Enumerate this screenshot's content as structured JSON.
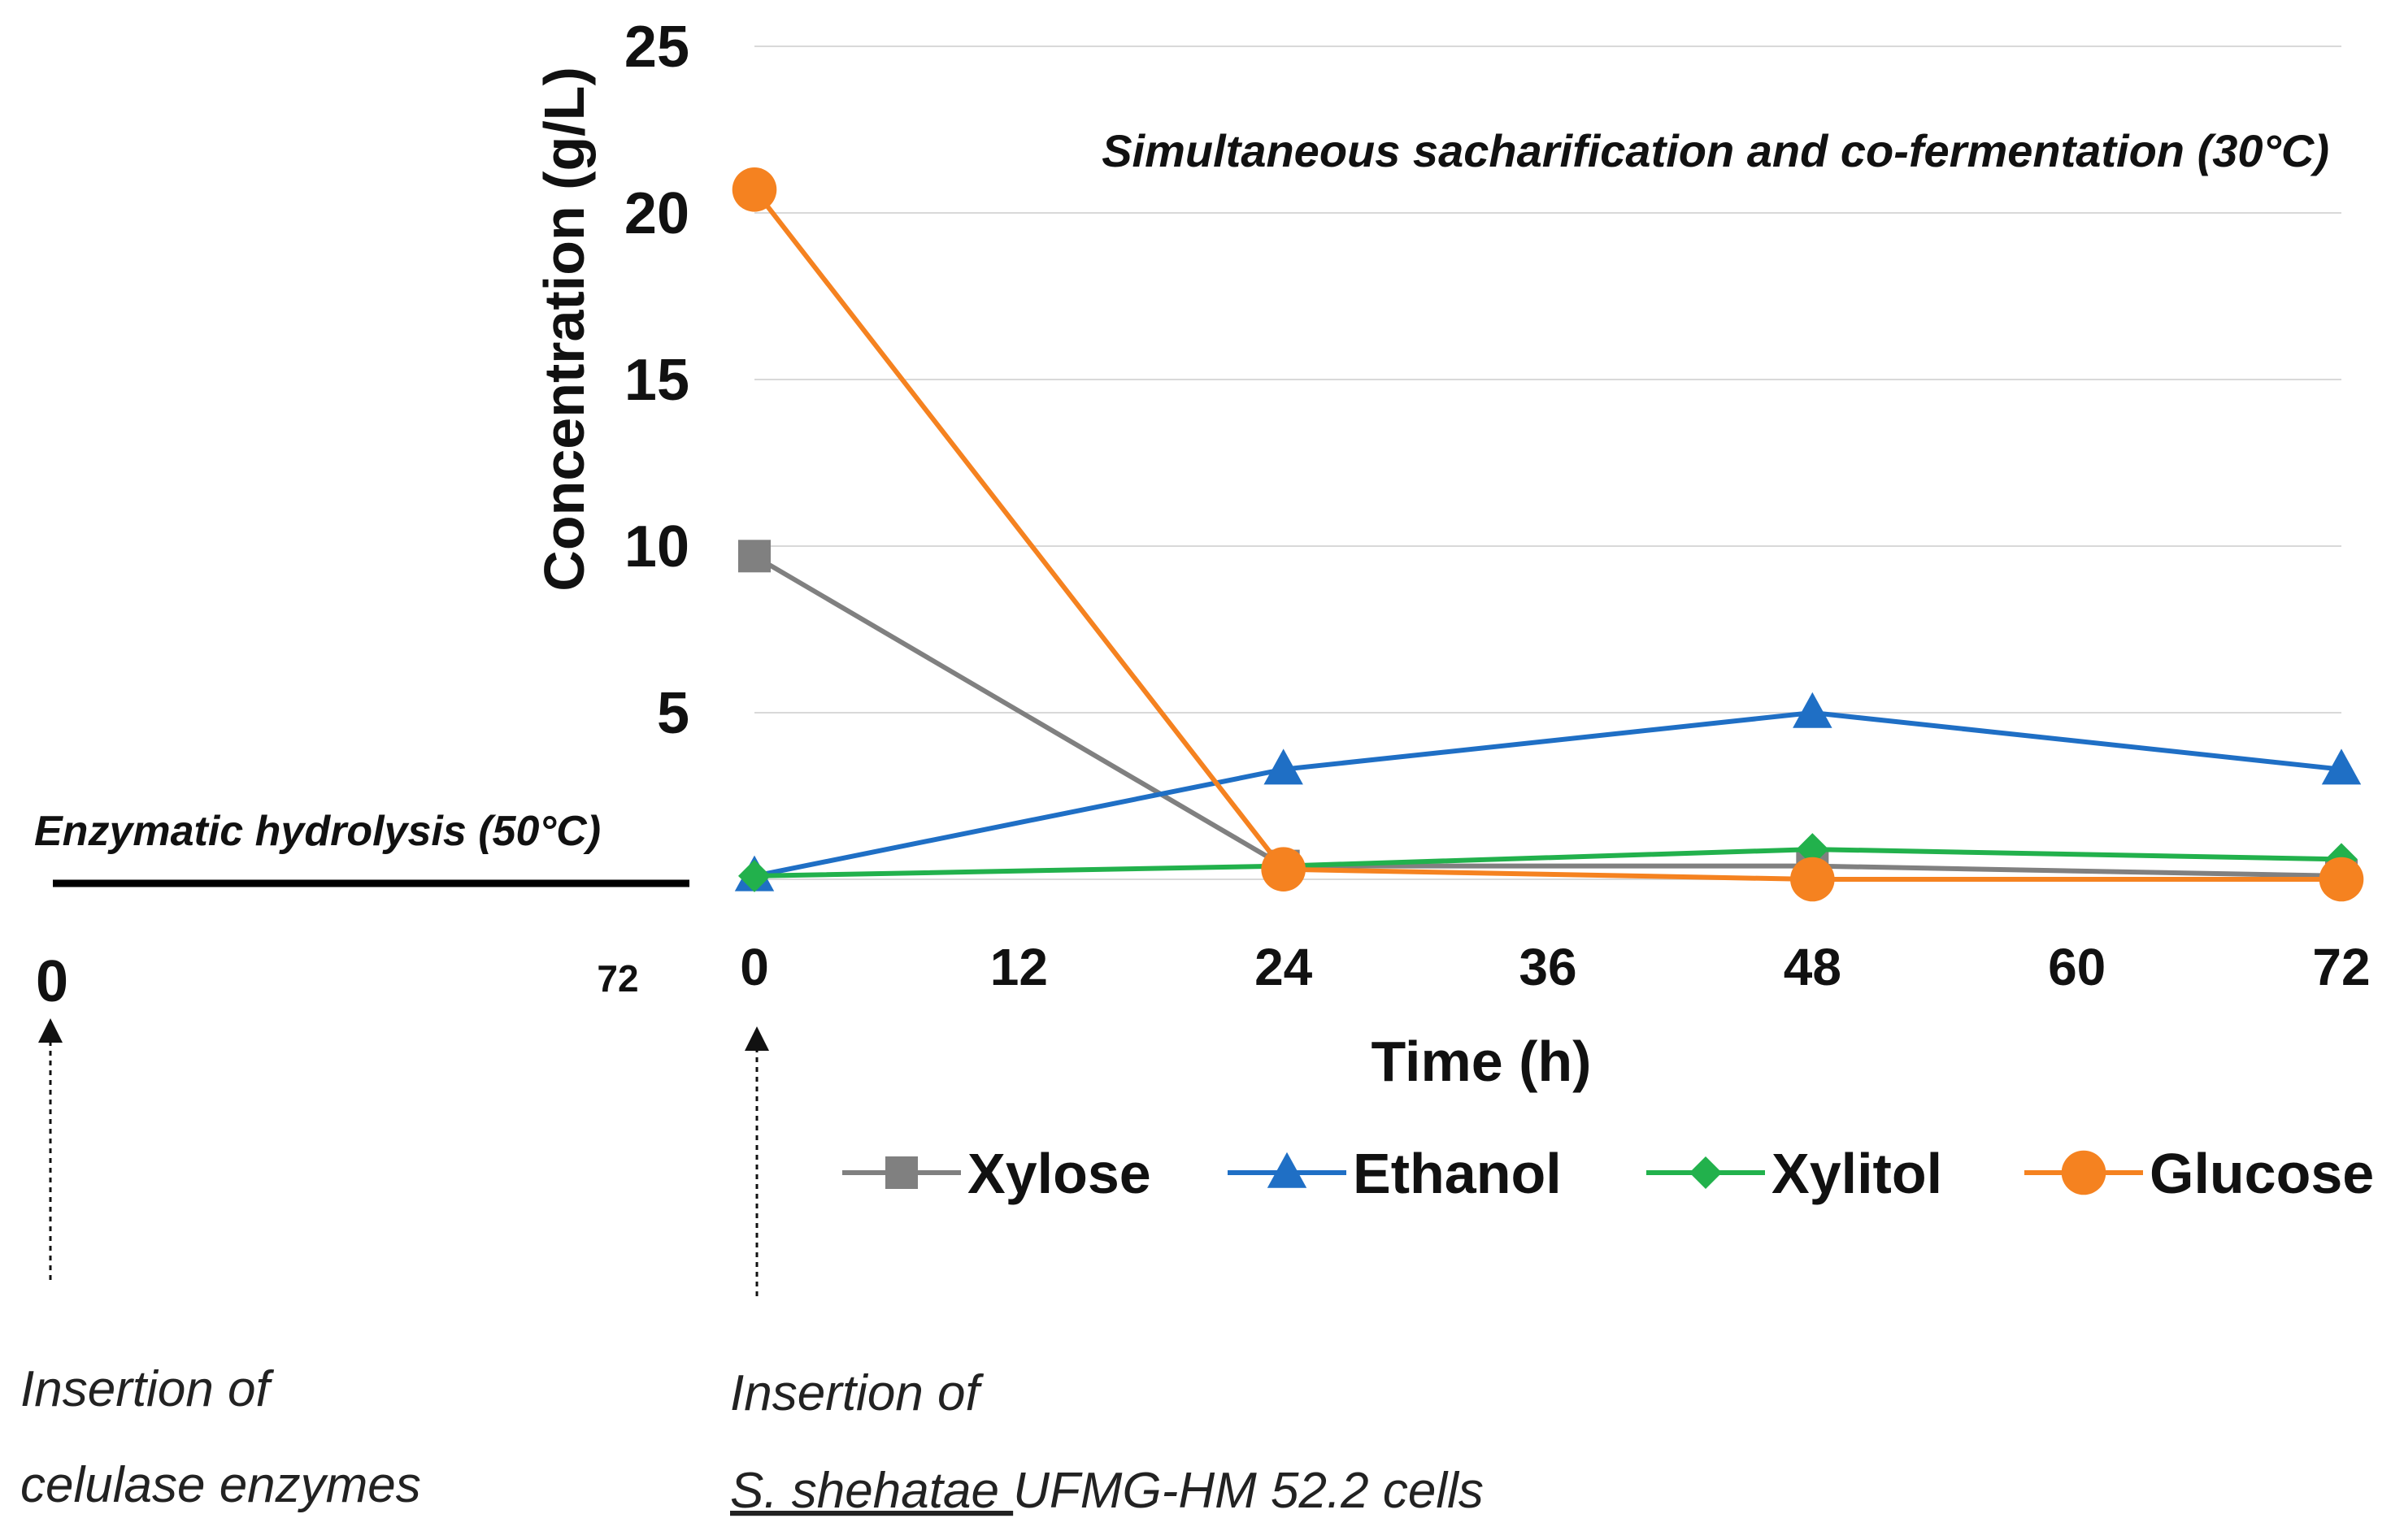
{
  "chart_data": {
    "type": "line",
    "title": "Simultaneous sacharification and co-fermentation (30°C)",
    "xlabel": "Time (h)",
    "ylabel": "Concentration (g/L)",
    "x": [
      0,
      24,
      48,
      72
    ],
    "xticks": [
      0,
      12,
      24,
      36,
      48,
      60,
      72
    ],
    "yticks": [
      5,
      10,
      15,
      20,
      25
    ],
    "xlim": [
      0,
      72
    ],
    "ylim": [
      0,
      25
    ],
    "grid": "horizontal",
    "series": [
      {
        "name": "Xylose",
        "values": [
          9.7,
          0.4,
          0.4,
          0.1
        ],
        "color": "#808080",
        "marker": "square"
      },
      {
        "name": "Ethanol",
        "values": [
          0.1,
          3.3,
          5.0,
          3.3
        ],
        "color": "#1f6fc5",
        "marker": "triangle"
      },
      {
        "name": "Xylitol",
        "values": [
          0.1,
          0.4,
          0.9,
          0.6
        ],
        "color": "#22b14c",
        "marker": "diamond"
      },
      {
        "name": "Glucose",
        "values": [
          20.7,
          0.3,
          0.0,
          0.0
        ],
        "color": "#f58220",
        "marker": "circle"
      }
    ],
    "hydrolysis": {
      "label": "Enzymatic hydrolysis (50°C)",
      "start_label": "0",
      "end_label": "72"
    },
    "annotations": {
      "enzymes_line1": "Insertion of",
      "enzymes_line2": "celulase enzymes",
      "cells_line1": "Insertion of",
      "cells_species": "S. shehatae ",
      "cells_rest": "UFMG-HM 52.2 cells"
    }
  }
}
